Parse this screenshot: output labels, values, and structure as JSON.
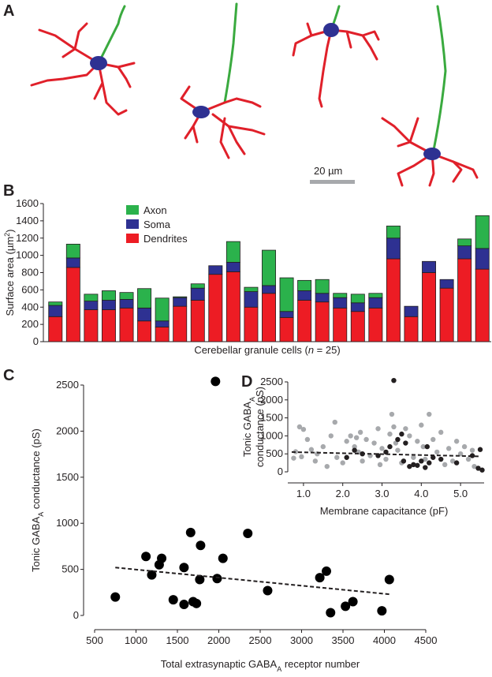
{
  "figure_a": {
    "panel_label": "A",
    "scale_bar": "20 µm"
  },
  "chart_data": [
    {
      "type": "bar",
      "panel_label": "B",
      "ylabel": [
        "Surface area (µm",
        "2",
        ")"
      ],
      "xlabel": [
        "Cerebellar granule cells (",
        "n",
        " = 25)"
      ],
      "categories": [
        null,
        null,
        null,
        null,
        null,
        null,
        null,
        null,
        null,
        null,
        null,
        null,
        null,
        null,
        null,
        null,
        null,
        null,
        null,
        null,
        null,
        null,
        null,
        null,
        null
      ],
      "series": [
        {
          "name": "Axon",
          "color": "#2bb24c",
          "values": [
            40,
            160,
            80,
            110,
            80,
            225,
            265,
            10,
            50,
            0,
            240,
            50,
            410,
            390,
            120,
            160,
            50,
            100,
            50,
            140,
            0,
            0,
            0,
            80,
            380
          ]
        },
        {
          "name": "Soma",
          "color": "#2e3192",
          "values": [
            130,
            110,
            100,
            110,
            100,
            150,
            70,
            100,
            140,
            100,
            110,
            180,
            90,
            70,
            110,
            100,
            120,
            100,
            120,
            240,
            120,
            130,
            100,
            150,
            240
          ]
        },
        {
          "name": "Dendrites",
          "color": "#ed1c24",
          "values": [
            290,
            860,
            370,
            370,
            390,
            240,
            170,
            410,
            480,
            780,
            810,
            400,
            560,
            280,
            480,
            460,
            390,
            350,
            390,
            960,
            290,
            800,
            620,
            960,
            840
          ]
        }
      ],
      "stacked": true,
      "ylim": [
        0,
        1600
      ],
      "yticks": [
        0,
        200,
        400,
        600,
        800,
        1000,
        1200,
        1400,
        1600
      ]
    },
    {
      "type": "scatter",
      "panel_label": "C",
      "ylabel": [
        "Tonic GABA",
        "A",
        " conductance (pS)"
      ],
      "xlabel": [
        "Total extrasynaptic GABA",
        "A",
        " receptor number"
      ],
      "xlim": [
        500,
        4500
      ],
      "ylim": [
        0,
        2500
      ],
      "xticks": [
        500,
        1000,
        1500,
        2000,
        2500,
        3000,
        3500,
        4000,
        4500
      ],
      "yticks": [
        0,
        500,
        1000,
        1500,
        2000,
        2500
      ],
      "series": [
        {
          "color": "#000000",
          "x": [
            750,
            1120,
            1190,
            1280,
            1310,
            1450,
            1580,
            1580,
            1660,
            1690,
            1730,
            1770,
            1780,
            1960,
            1980,
            2050,
            2350,
            2590,
            3220,
            3300,
            3350,
            3530,
            3620,
            3970,
            4060
          ],
          "values": [
            200,
            640,
            440,
            550,
            620,
            170,
            520,
            120,
            900,
            150,
            130,
            390,
            760,
            2540,
            400,
            620,
            890,
            270,
            410,
            480,
            30,
            100,
            150,
            50,
            390
          ]
        }
      ],
      "trend": {
        "x": [
          750,
          4060
        ],
        "y": [
          520,
          230
        ]
      }
    },
    {
      "type": "scatter",
      "panel_label": "D",
      "ylabel": [
        [
          "Tonic GABA",
          "A"
        ],
        [
          "conductance (pS)"
        ]
      ],
      "xlabel": [
        "Membrane capacitance (pF)"
      ],
      "xlim": [
        0.5,
        5.6
      ],
      "ylim": [
        0,
        2500
      ],
      "xticks": [
        {
          "value": 1,
          "label": "1.0"
        },
        {
          "value": 2,
          "label": "2.0"
        },
        {
          "value": 3,
          "label": "3.0"
        },
        {
          "value": 4,
          "label": "4.0"
        },
        {
          "value": 5,
          "label": "5.0"
        }
      ],
      "yticks": [
        0,
        500,
        1000,
        1500,
        2000,
        2500
      ],
      "series": [
        {
          "color": "#a7a9ac",
          "x": [
            0.75,
            0.8,
            0.9,
            0.95,
            1.0,
            1.1,
            1.2,
            1.3,
            1.35,
            1.5,
            1.6,
            1.7,
            1.8,
            1.85,
            2.0,
            2.1,
            2.2,
            2.3,
            2.35,
            2.4,
            2.45,
            2.5,
            2.6,
            2.7,
            2.8,
            2.9,
            2.95,
            3.0,
            3.1,
            3.2,
            3.25,
            3.3,
            3.35,
            3.4,
            3.5,
            3.6,
            3.7,
            3.8,
            3.9,
            4.0,
            4.05,
            4.1,
            4.2,
            4.3,
            4.4,
            4.5,
            4.6,
            4.7,
            4.8,
            4.9,
            5.0,
            5.1,
            5.2,
            5.3,
            5.35
          ],
          "values": [
            380,
            560,
            1250,
            420,
            1180,
            900,
            620,
            300,
            500,
            700,
            150,
            1000,
            1380,
            400,
            250,
            850,
            1000,
            700,
            950,
            550,
            1100,
            300,
            900,
            450,
            800,
            1200,
            200,
            650,
            350,
            1050,
            1600,
            1250,
            800,
            600,
            250,
            1200,
            1000,
            400,
            850,
            1300,
            700,
            350,
            1600,
            900,
            550,
            1100,
            200,
            650,
            300,
            850,
            500,
            700,
            350,
            600,
            150
          ]
        },
        {
          "color": "#231f20",
          "x": [
            2.1,
            2.3,
            2.5,
            2.9,
            3.1,
            3.2,
            3.3,
            3.4,
            3.5,
            3.55,
            3.6,
            3.7,
            3.8,
            3.9,
            4.0,
            4.1,
            4.15,
            4.2,
            4.3,
            4.5,
            4.9,
            5.3,
            5.45,
            5.5,
            5.55
          ],
          "values": [
            400,
            600,
            500,
            450,
            550,
            700,
            2540,
            900,
            1050,
            300,
            800,
            150,
            200,
            180,
            300,
            120,
            700,
            250,
            400,
            350,
            250,
            450,
            100,
            620,
            50
          ]
        }
      ],
      "trend": {
        "x": [
          0.7,
          5.5
        ],
        "y": [
          550,
          430
        ]
      }
    }
  ]
}
